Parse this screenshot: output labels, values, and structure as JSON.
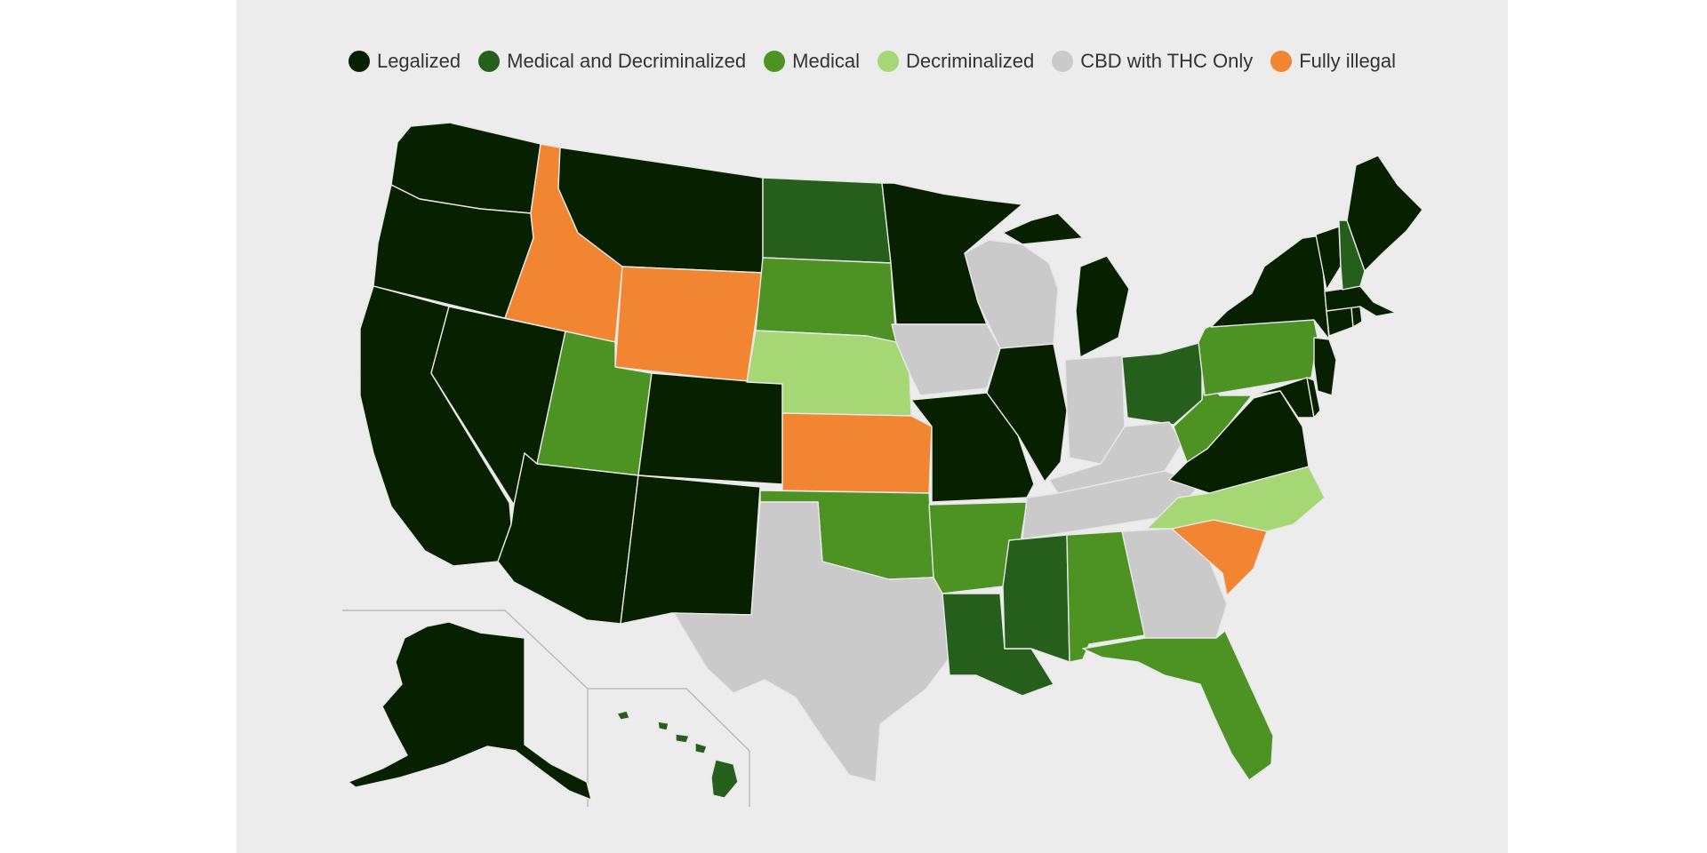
{
  "legend": [
    {
      "key": "legalized",
      "label": "Legalized",
      "color": "#072100"
    },
    {
      "key": "medical_decrim",
      "label": "Medical and Decriminalized",
      "color": "#255f1b"
    },
    {
      "key": "medical",
      "label": "Medical",
      "color": "#4d9324"
    },
    {
      "key": "decrim",
      "label": "Decriminalized",
      "color": "#a6d775"
    },
    {
      "key": "cbd",
      "label": "CBD with THC Only",
      "color": "#cacaca"
    },
    {
      "key": "illegal",
      "label": "Fully illegal",
      "color": "#f28532"
    }
  ],
  "state_status": {
    "WA": "legalized",
    "OR": "legalized",
    "CA": "legalized",
    "NV": "legalized",
    "ID": "illegal",
    "MT": "legalized",
    "WY": "illegal",
    "UT": "medical",
    "AZ": "legalized",
    "CO": "legalized",
    "NM": "legalized",
    "ND": "medical_decrim",
    "SD": "medical",
    "NE": "decrim",
    "KS": "illegal",
    "OK": "medical",
    "TX": "cbd",
    "MN": "legalized",
    "IA": "cbd",
    "MO": "legalized",
    "AR": "medical",
    "LA": "medical_decrim",
    "WI": "cbd",
    "IL": "legalized",
    "MI": "legalized",
    "IN": "cbd",
    "OH": "medical_decrim",
    "KY": "cbd",
    "TN": "cbd",
    "MS": "medical_decrim",
    "AL": "medical",
    "GA": "cbd",
    "FL": "medical",
    "SC": "illegal",
    "NC": "decrim",
    "VA": "legalized",
    "WV": "medical",
    "PA": "medical",
    "NY": "legalized",
    "VT": "legalized",
    "NH": "medical_decrim",
    "ME": "legalized",
    "MA": "legalized",
    "CT": "legalized",
    "RI": "legalized",
    "NJ": "legalized",
    "DE": "legalized",
    "MD": "legalized",
    "AK": "legalized",
    "HI": "medical_decrim"
  }
}
